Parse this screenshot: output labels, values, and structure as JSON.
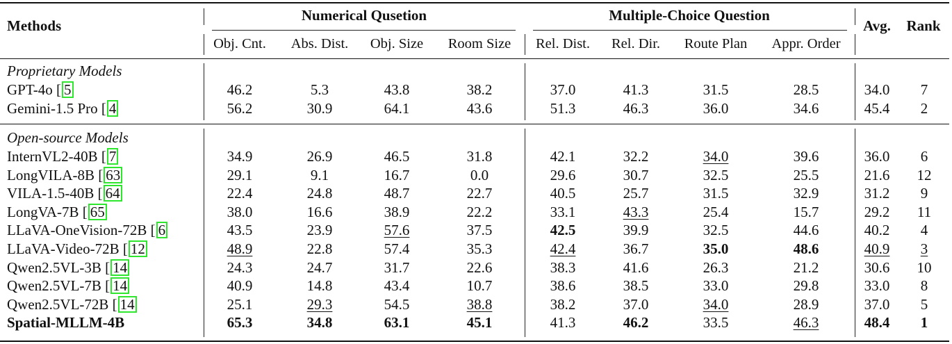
{
  "table": {
    "header": {
      "methods": "Methods",
      "group_numerical": "Numerical Qusetion",
      "group_multiple_choice": "Multiple-Choice Question",
      "avg": "Avg.",
      "rank": "Rank",
      "columns": [
        "Obj. Cnt.",
        "Abs. Dist.",
        "Obj. Size",
        "Room Size",
        "Rel. Dist.",
        "Rel. Dir.",
        "Route Plan",
        "Appr. Order"
      ]
    },
    "sections": [
      {
        "label": "Proprietary Models",
        "rows": [
          {
            "name": "GPT-4o",
            "cite": "5",
            "values": [
              "46.2",
              "5.3",
              "43.8",
              "38.2",
              "37.0",
              "41.3",
              "31.5",
              "28.5"
            ],
            "avg": "34.0",
            "rank": "7"
          },
          {
            "name": "Gemini-1.5 Pro",
            "cite": "4",
            "values": [
              "56.2",
              "30.9",
              "64.1",
              "43.6",
              "51.3",
              "46.3",
              "36.0",
              "34.6"
            ],
            "avg": "45.4",
            "rank": "2"
          }
        ]
      },
      {
        "label": "Open-source Models",
        "rows": [
          {
            "name": "InternVL2-40B",
            "cite": "7",
            "values": [
              "34.9",
              "26.9",
              "46.5",
              "31.8",
              "42.1",
              "32.2",
              "34.0",
              "39.6"
            ],
            "avg": "36.0",
            "rank": "6"
          },
          {
            "name": "LongVILA-8B",
            "cite": "63",
            "values": [
              "29.1",
              "9.1",
              "16.7",
              "0.0",
              "29.6",
              "30.7",
              "32.5",
              "25.5"
            ],
            "avg": "21.6",
            "rank": "12"
          },
          {
            "name": "VILA-1.5-40B",
            "cite": "64",
            "values": [
              "22.4",
              "24.8",
              "48.7",
              "22.7",
              "40.5",
              "25.7",
              "31.5",
              "32.9"
            ],
            "avg": "31.2",
            "rank": "9"
          },
          {
            "name": "LongVA-7B",
            "cite": "65",
            "values": [
              "38.0",
              "16.6",
              "38.9",
              "22.2",
              "33.1",
              "43.3",
              "25.4",
              "15.7"
            ],
            "avg": "29.2",
            "rank": "11"
          },
          {
            "name": "LLaVA-OneVision-72B",
            "cite": "6",
            "values": [
              "43.5",
              "23.9",
              "57.6",
              "37.5",
              "42.5",
              "39.9",
              "32.5",
              "44.6"
            ],
            "avg": "40.2",
            "rank": "4"
          },
          {
            "name": "LLaVA-Video-72B",
            "cite": "12",
            "values": [
              "48.9",
              "22.8",
              "57.4",
              "35.3",
              "42.4",
              "36.7",
              "35.0",
              "48.6"
            ],
            "avg": "40.9",
            "rank": "3"
          },
          {
            "name": "Qwen2.5VL-3B",
            "cite": "14",
            "values": [
              "24.3",
              "24.7",
              "31.7",
              "22.6",
              "38.3",
              "41.6",
              "26.3",
              "21.2"
            ],
            "avg": "30.6",
            "rank": "10"
          },
          {
            "name": "Qwen2.5VL-7B",
            "cite": "14",
            "values": [
              "40.9",
              "14.8",
              "43.4",
              "10.7",
              "38.6",
              "38.5",
              "33.0",
              "29.8"
            ],
            "avg": "33.0",
            "rank": "8"
          },
          {
            "name": "Qwen2.5VL-72B",
            "cite": "14",
            "values": [
              "25.1",
              "29.3",
              "54.5",
              "38.8",
              "38.2",
              "37.0",
              "34.0",
              "28.9"
            ],
            "avg": "37.0",
            "rank": "5"
          },
          {
            "name": "Spatial-MLLM-4B",
            "cite": "",
            "values": [
              "65.3",
              "34.8",
              "63.1",
              "45.1",
              "41.3",
              "46.2",
              "33.5",
              "46.3"
            ],
            "avg": "48.4",
            "rank": "1"
          }
        ]
      }
    ],
    "emphasis": {
      "bold": [
        "1.4.4",
        "1.5.6",
        "1.5.7",
        "1.9.0",
        "1.9.1",
        "1.9.2",
        "1.9.3",
        "1.9.5",
        "1.9.avg",
        "1.9.rank",
        "1.9.name"
      ],
      "underline": [
        "1.0.6",
        "1.3.5",
        "1.4.2",
        "1.5.0",
        "1.5.4",
        "1.5.avg",
        "1.5.rank",
        "1.8.1",
        "1.8.3",
        "1.8.6",
        "1.9.7"
      ]
    },
    "cite_box_color": "#2ee62e"
  }
}
